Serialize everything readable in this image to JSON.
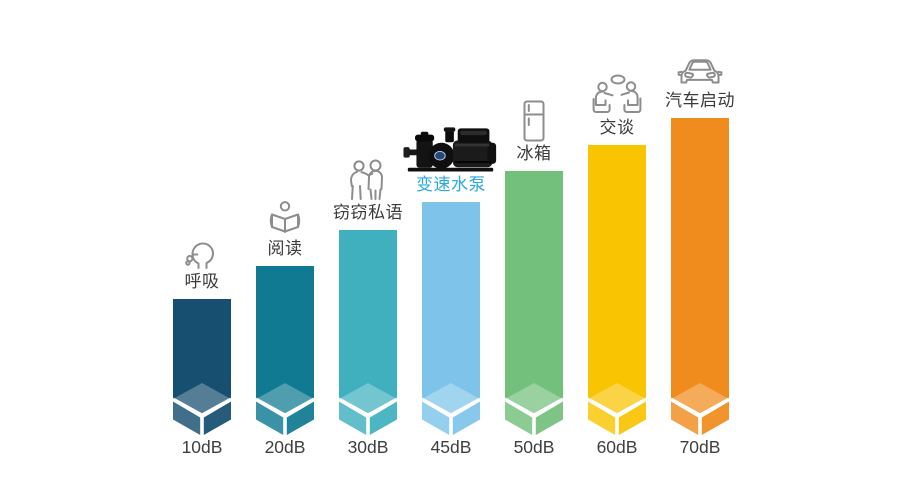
{
  "page": {
    "background": "#ffffff"
  },
  "chart_data": {
    "type": "bar",
    "title": "",
    "xlabel": "",
    "ylabel": "",
    "categories": [
      "10dB",
      "20dB",
      "30dB",
      "45dB",
      "50dB",
      "60dB",
      "70dB"
    ],
    "values": [
      10,
      20,
      30,
      45,
      50,
      60,
      70
    ],
    "ylim": [
      0,
      80
    ],
    "grid": false,
    "legend": false,
    "highlight_color": "#2aa9de",
    "items": [
      {
        "db_label": "10dB",
        "value": 10,
        "activity": "呼吸",
        "icon": "breathing-icon",
        "color": "#174f70",
        "label_color": "#3a3a3a",
        "highlighted": false
      },
      {
        "db_label": "20dB",
        "value": 20,
        "activity": "阅读",
        "icon": "reading-icon",
        "color": "#0f7a92",
        "label_color": "#3a3a3a",
        "highlighted": false
      },
      {
        "db_label": "30dB",
        "value": 30,
        "activity": "窃窃私语",
        "icon": "whisper-icon",
        "color": "#40b0bf",
        "label_color": "#3a3a3a",
        "highlighted": false
      },
      {
        "db_label": "45dB",
        "value": 45,
        "activity": "变速水泵",
        "icon": "pump-image",
        "color": "#7ec4ea",
        "label_color": "#2aa9de",
        "highlighted": true
      },
      {
        "db_label": "50dB",
        "value": 50,
        "activity": "冰箱",
        "icon": "fridge-icon",
        "color": "#73c07d",
        "label_color": "#3a3a3a",
        "highlighted": false
      },
      {
        "db_label": "60dB",
        "value": 60,
        "activity": "交谈",
        "icon": "conversation-icon",
        "color": "#f9c402",
        "label_color": "#3a3a3a",
        "highlighted": false
      },
      {
        "db_label": "70dB",
        "value": 70,
        "activity": "汽车启动",
        "icon": "car-icon",
        "color": "#f08c1e",
        "label_color": "#3a3a3a",
        "highlighted": false
      }
    ]
  }
}
